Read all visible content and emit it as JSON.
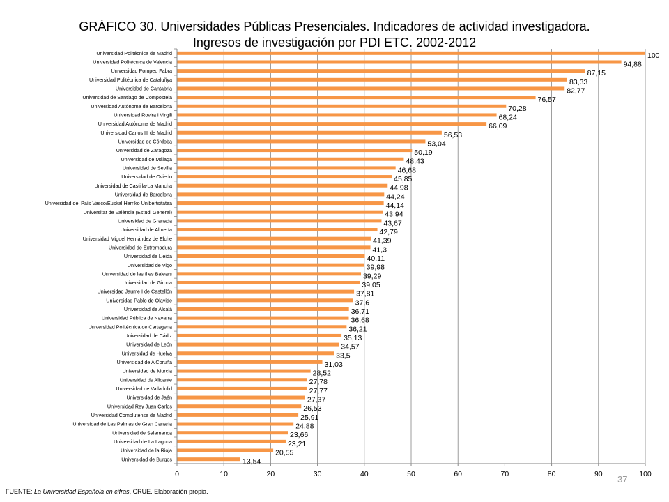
{
  "title_line1": "GRÁFICO 30. Universidades Públicas Presenciales. Indicadores de actividad investigadora.",
  "title_line2": "Ingresos de investigación por PDI ETC. 2002-2012",
  "footer": {
    "prefix": "FUENTE: ",
    "source_italic": "La Universidad Española en cifras",
    "suffix": ", CRUE. Elaboración propia."
  },
  "page_number": "37",
  "colors": {
    "bar": "#f79646",
    "grid": "#868686",
    "axis": "#868686"
  },
  "chart_data": {
    "type": "bar",
    "orientation": "horizontal",
    "title": "GRÁFICO 30. Universidades Públicas Presenciales. Indicadores de actividad investigadora. Ingresos de investigación por PDI ETC. 2002-2012",
    "xlim": [
      0,
      100
    ],
    "x_ticks": [
      0,
      10,
      20,
      30,
      40,
      50,
      60,
      70,
      80,
      90,
      100
    ],
    "grid": true,
    "categories": [
      "Universidad Politécnica de Madrid",
      "Universidad Politécnica de Valencia",
      "Universidad Pompeu Fabra",
      "Universidad Politécnica de Cataluñya",
      "Universidad de Cantabria",
      "Universidad de Santiago de Compostela",
      "Universidad Autónoma de Barcelona",
      "Universidad Rovira i Virgili",
      "Universidad Autónoma de Madrid",
      "Universidad Carlos III de Madrid",
      "Universidad de Córdoba",
      "Universidad de Zaragoza",
      "Universidad de Málaga",
      "Universidad de Sevilla",
      "Universidad de Oviedo",
      "Universidad de Castilla-La Mancha",
      "Universidad de Barcelona",
      "Universidad del País Vasco/Euskal Herriko Unibertsitatea",
      "Universitat de València (Estudi General)",
      "Universidad de Granada",
      "Universidad de Almería",
      "Universidad Miguel Hernández de Elche",
      "Universidad de Extremadura",
      "Universidad de Lleida",
      "Universidad de Vigo",
      "Universidad de las Illes Balears",
      "Universidad de Girona",
      "Universidad Jaume I de Castellón",
      "Universidad Pablo de Olavide",
      "Universidad de Alcalá",
      "Universidad Pública de Navarra",
      "Universidad Politécnica de Cartagena",
      "Universidad de Cádiz",
      "Universidad de León",
      "Universidad de Huelva",
      "Universidad de A Coruña",
      "Universidad de Murcia",
      "Universidad de Alicante",
      "Universidad de Valladolid",
      "Universidad de Jaén",
      "Universidad Rey Juan Carlos",
      "Universidad Complutense de Madrid",
      "Universidad de Las Palmas de Gran Canaria",
      "Universidad de Salamanca",
      "Universidad de La Laguna",
      "Universidad de la Rioja",
      "Universidad de Burgos"
    ],
    "values": [
      100,
      94.88,
      87.15,
      83.33,
      82.77,
      76.57,
      70.28,
      68.24,
      66.09,
      56.53,
      53.04,
      50.19,
      48.43,
      46.68,
      45.85,
      44.98,
      44.24,
      44.14,
      43.94,
      43.67,
      42.79,
      41.39,
      41.3,
      40.11,
      39.98,
      39.29,
      39.05,
      37.81,
      37.6,
      36.71,
      36.68,
      36.21,
      35.13,
      34.57,
      33.5,
      31.03,
      28.52,
      27.78,
      27.77,
      27.37,
      26.53,
      25.91,
      24.88,
      23.66,
      23.21,
      20.55,
      13.54
    ],
    "value_labels": [
      "100",
      "94,88",
      "87,15",
      "83,33",
      "82,77",
      "76,57",
      "70,28",
      "68,24",
      "66,09",
      "56,53",
      "53,04",
      "50,19",
      "48,43",
      "46,68",
      "45,85",
      "44,98",
      "44,24",
      "44,14",
      "43,94",
      "43,67",
      "42,79",
      "41,39",
      "41,3",
      "40,11",
      "39,98",
      "39,29",
      "39,05",
      "37,81",
      "37,6",
      "36,71",
      "36,68",
      "36,21",
      "35,13",
      "34,57",
      "33,5",
      "31,03",
      "28,52",
      "27,78",
      "27,77",
      "27,37",
      "26,53",
      "25,91",
      "24,88",
      "23,66",
      "23,21",
      "20,55",
      "13,54"
    ]
  }
}
